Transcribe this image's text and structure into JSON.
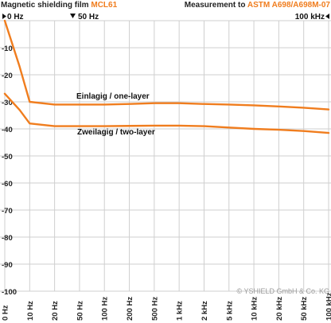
{
  "header": {
    "title_prefix": "Magnetic shielding film ",
    "title_product": "MCL61",
    "measurement_prefix": "Measurement to ",
    "measurement_standard": "ASTM A698/A698M-07",
    "marker_left": "0 Hz",
    "marker_mid": "50 Hz",
    "marker_right": "100 kHz"
  },
  "copyright": "© YSHIELD GmbH & Co. KG",
  "colors": {
    "accent": "#f07d1e",
    "grid": "#cfcfcf",
    "text": "#222222"
  },
  "chart_data": {
    "type": "line",
    "title": "Magnetic shielding film MCL61",
    "xlabel": "",
    "ylabel": "",
    "x_tick_labels": [
      "0 Hz",
      "10 Hz",
      "20 Hz",
      "50 Hz",
      "100 Hz",
      "200 Hz",
      "500 Hz",
      "1 kHz",
      "2 kHz",
      "5 kHz",
      "10 kHz",
      "20 kHz",
      "50 kHz",
      "100 kHz"
    ],
    "y_ticks": [
      0,
      -10,
      -20,
      -30,
      -40,
      -50,
      -60,
      -70,
      -80,
      -90,
      -100
    ],
    "ylim": [
      -100,
      0
    ],
    "grid": true,
    "series": [
      {
        "name": "Einlagig / one-layer",
        "x": [
          "0 Hz",
          "5 Hz",
          "10 Hz",
          "20 Hz",
          "50 Hz",
          "100 Hz",
          "200 Hz",
          "500 Hz",
          "1 kHz",
          "2 kHz",
          "5 kHz",
          "10 kHz",
          "20 kHz",
          "50 kHz",
          "100 kHz"
        ],
        "values": [
          0,
          -17,
          -30,
          -31,
          -31,
          -31,
          -30.8,
          -30.5,
          -30.5,
          -30.8,
          -31,
          -31.3,
          -31.7,
          -32.2,
          -32.8
        ]
      },
      {
        "name": "Zweilagig / two-layer",
        "x": [
          "0 Hz",
          "5 Hz",
          "10 Hz",
          "20 Hz",
          "50 Hz",
          "100 Hz",
          "200 Hz",
          "500 Hz",
          "1 kHz",
          "2 kHz",
          "5 kHz",
          "10 kHz",
          "20 kHz",
          "50 kHz",
          "100 kHz"
        ],
        "values": [
          -27,
          -33,
          -38,
          -39,
          -39,
          -39,
          -38.9,
          -38.8,
          -38.8,
          -39,
          -39.5,
          -40,
          -40.3,
          -40.8,
          -41.5
        ]
      }
    ]
  }
}
